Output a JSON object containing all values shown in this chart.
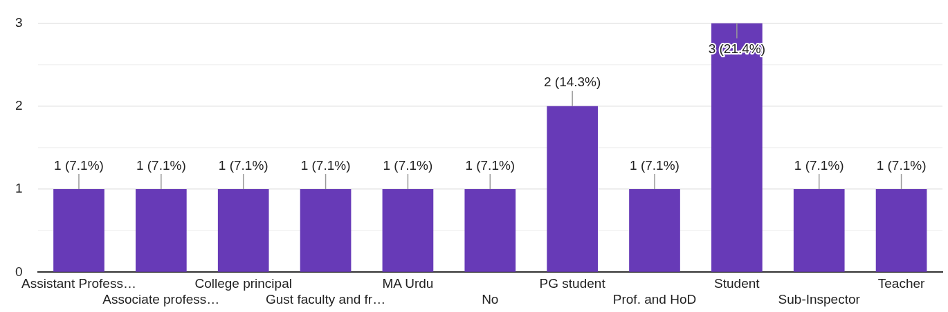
{
  "chart_data": {
    "type": "bar",
    "categories": [
      "Assistant Profess…",
      "Associate profess…",
      "College principal",
      "Gust faculty and fr…",
      "MA Urdu",
      "No",
      "PG student",
      "Prof. and HoD",
      "Student",
      "Sub-Inspector",
      "Teacher"
    ],
    "values": [
      1,
      1,
      1,
      1,
      1,
      1,
      2,
      1,
      3,
      1,
      1
    ],
    "value_labels": [
      "1 (7.1%)",
      "1 (7.1%)",
      "1 (7.1%)",
      "1 (7.1%)",
      "1 (7.1%)",
      "1 (7.1%)",
      "2 (14.3%)",
      "1 (7.1%)",
      "3 (21.4%)",
      "1 (7.1%)",
      "1 (7.1%)"
    ],
    "color": "#673ab7",
    "ylim": [
      0,
      3
    ],
    "yticks": [
      0,
      {
        "value": 0.5,
        "label": null
      },
      1,
      {
        "value": 1.5,
        "label": null
      },
      2,
      {
        "value": 2.5,
        "label": null
      },
      3
    ],
    "grid": "y",
    "legend": false
  }
}
